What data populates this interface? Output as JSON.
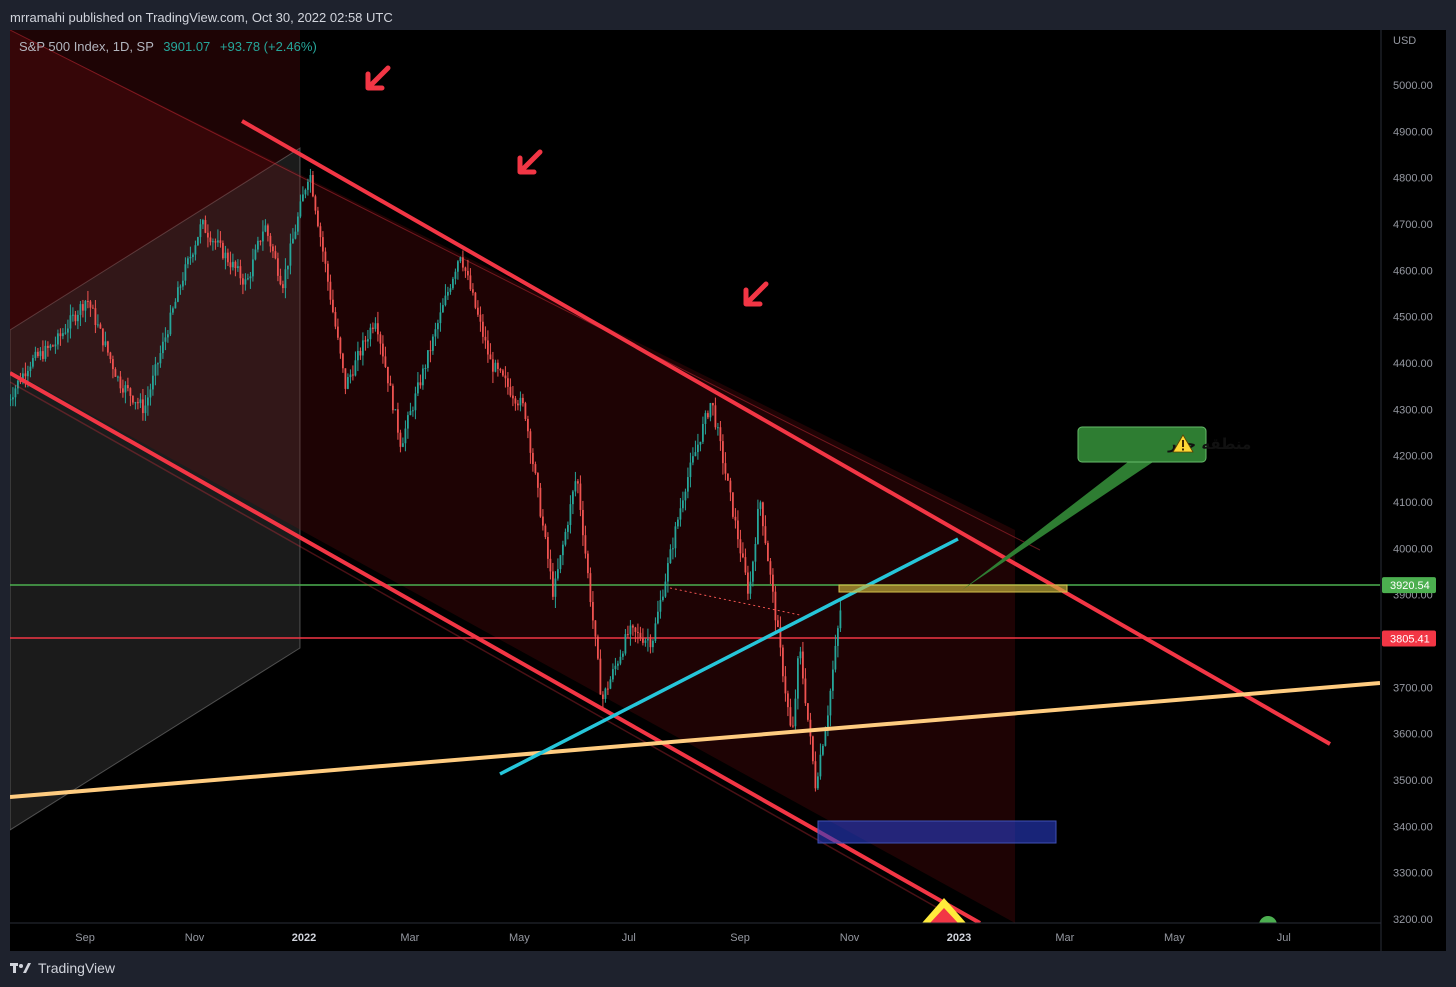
{
  "header": {
    "publisher": "mrramahi published on TradingView.com, Oct 30, 2022 02:58 UTC"
  },
  "legend": {
    "symbol": "S&P 500 Index, 1D, SP",
    "price": "3901.07",
    "change": "+93.78 (+2.46%)"
  },
  "footer": {
    "brand": "TradingView"
  },
  "colors": {
    "up": "#26a69a",
    "down": "#ef5350",
    "channel": "#f23645",
    "support": "#4caf50",
    "trend": "#26c6da",
    "long_trend": "#ffcc80"
  },
  "chart_data": {
    "type": "candlestick",
    "currency": "USD",
    "y_ticks": [
      "5000.00",
      "4900.00",
      "4800.00",
      "4700.00",
      "4600.00",
      "4500.00",
      "4400.00",
      "4300.00",
      "4200.00",
      "4100.00",
      "4000.00",
      "3900.00",
      "3800.00",
      "3700.00",
      "3600.00",
      "3500.00",
      "3400.00",
      "3300.00",
      "3200.00"
    ],
    "x_ticks": [
      "Sep",
      "Nov",
      "2022",
      "Mar",
      "May",
      "Jul",
      "Sep",
      "Nov",
      "2023",
      "Mar",
      "May",
      "Jul"
    ],
    "price_tags": [
      {
        "label": "3920.54",
        "value": 3920.54,
        "color": "#4caf50"
      },
      {
        "label": "3805.41",
        "value": 3805.41,
        "color": "#f23645"
      }
    ],
    "annotation": {
      "text": "منطقه حذر",
      "icon": "⚠️"
    },
    "series": [
      {
        "name": "S&P 500 Index",
        "points": [
          [
            "2021-07-20",
            4320
          ],
          [
            "2021-08-01",
            4400
          ],
          [
            "2021-08-15",
            4440
          ],
          [
            "2021-09-02",
            4540
          ],
          [
            "2021-09-20",
            4360
          ],
          [
            "2021-10-04",
            4300
          ],
          [
            "2021-10-25",
            4580
          ],
          [
            "2021-11-05",
            4700
          ],
          [
            "2021-11-30",
            4570
          ],
          [
            "2021-12-10",
            4700
          ],
          [
            "2021-12-20",
            4570
          ],
          [
            "2022-01-04",
            4818
          ],
          [
            "2022-01-24",
            4350
          ],
          [
            "2022-02-10",
            4500
          ],
          [
            "2022-02-24",
            4225
          ],
          [
            "2022-03-29",
            4640
          ],
          [
            "2022-04-15",
            4400
          ],
          [
            "2022-05-04",
            4300
          ],
          [
            "2022-05-20",
            3900
          ],
          [
            "2022-06-02",
            4160
          ],
          [
            "2022-06-16",
            3670
          ],
          [
            "2022-07-01",
            3820
          ],
          [
            "2022-07-14",
            3800
          ],
          [
            "2022-08-01",
            4130
          ],
          [
            "2022-08-16",
            4320
          ],
          [
            "2022-09-06",
            3900
          ],
          [
            "2022-09-12",
            4110
          ],
          [
            "2022-09-30",
            3585
          ],
          [
            "2022-10-04",
            3790
          ],
          [
            "2022-10-13",
            3491
          ],
          [
            "2022-10-20",
            3650
          ],
          [
            "2022-10-28",
            3901
          ]
        ]
      }
    ]
  }
}
